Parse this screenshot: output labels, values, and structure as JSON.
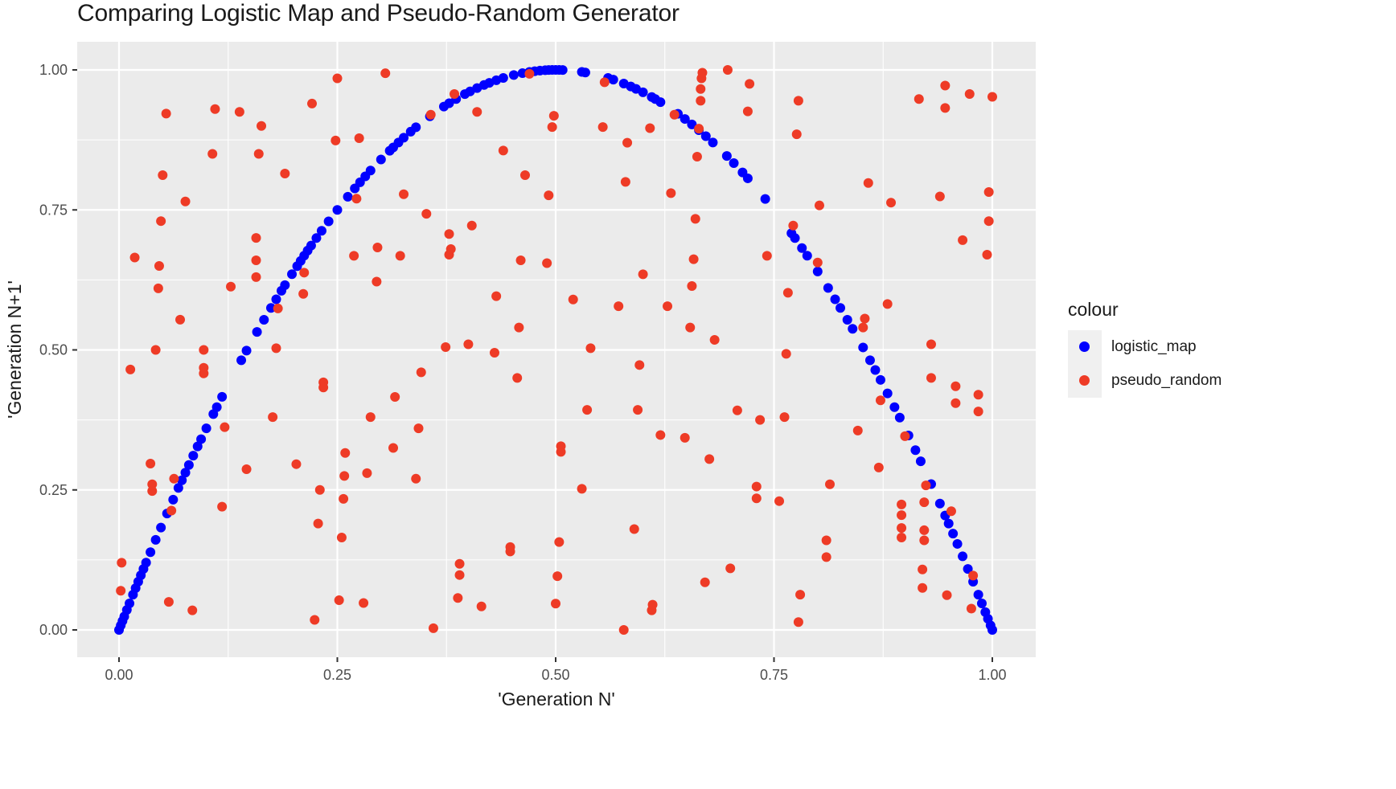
{
  "chart_data": {
    "type": "scatter",
    "title": "Comparing Logistic Map and Pseudo-Random Generator",
    "xlabel": "'Generation N'",
    "ylabel": "'Generation N+1'",
    "xlim": [
      -0.047,
      1.049
    ],
    "ylim": [
      -0.047,
      1.049
    ],
    "x_ticks": [
      0.0,
      0.25,
      0.5,
      0.75,
      1.0
    ],
    "x_tick_labels": [
      "0.00",
      "0.25",
      "0.50",
      "0.75",
      "1.00"
    ],
    "y_ticks": [
      0.0,
      0.25,
      0.5,
      0.75,
      1.0
    ],
    "y_tick_labels": [
      "0.00",
      "0.25",
      "0.50",
      "0.75",
      "1.00"
    ],
    "grid": true,
    "legend_position": "right",
    "legend_title": "colour",
    "series": [
      {
        "name": "logistic_map",
        "color": "#0000ff",
        "function": "y = 4x(1-x)",
        "x": [
          0.0,
          0.002,
          0.004,
          0.006,
          0.009,
          0.012,
          0.016,
          0.019,
          0.022,
          0.025,
          0.028,
          0.031,
          0.036,
          0.042,
          0.048,
          0.055,
          0.062,
          0.068,
          0.072,
          0.076,
          0.08,
          0.085,
          0.09,
          0.094,
          0.1,
          0.108,
          0.112,
          0.118,
          0.14,
          0.146,
          0.158,
          0.166,
          0.174,
          0.18,
          0.186,
          0.19,
          0.198,
          0.204,
          0.208,
          0.212,
          0.216,
          0.22,
          0.226,
          0.232,
          0.24,
          0.25,
          0.262,
          0.27,
          0.276,
          0.282,
          0.288,
          0.3,
          0.31,
          0.314,
          0.32,
          0.326,
          0.334,
          0.34,
          0.356,
          0.372,
          0.378,
          0.386,
          0.396,
          0.402,
          0.41,
          0.418,
          0.424,
          0.432,
          0.44,
          0.452,
          0.462,
          0.47,
          0.476,
          0.482,
          0.488,
          0.492,
          0.496,
          0.5,
          0.504,
          0.508,
          0.53,
          0.534,
          0.56,
          0.566,
          0.578,
          0.586,
          0.592,
          0.6,
          0.61,
          0.614,
          0.62,
          0.64,
          0.648,
          0.656,
          0.664,
          0.672,
          0.68,
          0.696,
          0.704,
          0.714,
          0.72,
          0.74,
          0.77,
          0.774,
          0.782,
          0.788,
          0.8,
          0.812,
          0.82,
          0.826,
          0.834,
          0.84,
          0.852,
          0.86,
          0.866,
          0.872,
          0.88,
          0.888,
          0.894,
          0.904,
          0.912,
          0.918,
          0.93,
          0.94,
          0.946,
          0.95,
          0.955,
          0.96,
          0.966,
          0.972,
          0.978,
          0.984,
          0.988,
          0.992,
          0.995,
          0.998,
          1.0
        ],
        "values": "computed as 4*x*(1-x) for each x"
      },
      {
        "name": "pseudo_random",
        "color": "#ee3b26",
        "points": [
          [
            0.003,
            0.12
          ],
          [
            0.002,
            0.07
          ],
          [
            0.013,
            0.465
          ],
          [
            0.018,
            0.665
          ],
          [
            0.036,
            0.297
          ],
          [
            0.038,
            0.26
          ],
          [
            0.038,
            0.248
          ],
          [
            0.042,
            0.5
          ],
          [
            0.045,
            0.61
          ],
          [
            0.046,
            0.65
          ],
          [
            0.048,
            0.73
          ],
          [
            0.05,
            0.812
          ],
          [
            0.054,
            0.922
          ],
          [
            0.057,
            0.05
          ],
          [
            0.06,
            0.213
          ],
          [
            0.063,
            0.27
          ],
          [
            0.07,
            0.554
          ],
          [
            0.076,
            0.765
          ],
          [
            0.084,
            0.035
          ],
          [
            0.097,
            0.5
          ],
          [
            0.097,
            0.468
          ],
          [
            0.097,
            0.458
          ],
          [
            0.107,
            0.85
          ],
          [
            0.11,
            0.93
          ],
          [
            0.118,
            0.22
          ],
          [
            0.121,
            0.362
          ],
          [
            0.128,
            0.613
          ],
          [
            0.138,
            0.925
          ],
          [
            0.146,
            0.287
          ],
          [
            0.157,
            0.7
          ],
          [
            0.157,
            0.66
          ],
          [
            0.157,
            0.63
          ],
          [
            0.16,
            0.85
          ],
          [
            0.163,
            0.9
          ],
          [
            0.176,
            0.38
          ],
          [
            0.18,
            0.503
          ],
          [
            0.182,
            0.574
          ],
          [
            0.19,
            0.815
          ],
          [
            0.203,
            0.296
          ],
          [
            0.211,
            0.6
          ],
          [
            0.212,
            0.638
          ],
          [
            0.221,
            0.94
          ],
          [
            0.224,
            0.018
          ],
          [
            0.228,
            0.19
          ],
          [
            0.23,
            0.25
          ],
          [
            0.234,
            0.442
          ],
          [
            0.234,
            0.433
          ],
          [
            0.248,
            0.874
          ],
          [
            0.25,
            0.985
          ],
          [
            0.252,
            0.053
          ],
          [
            0.255,
            0.165
          ],
          [
            0.257,
            0.234
          ],
          [
            0.258,
            0.275
          ],
          [
            0.259,
            0.316
          ],
          [
            0.269,
            0.668
          ],
          [
            0.272,
            0.77
          ],
          [
            0.275,
            0.878
          ],
          [
            0.28,
            0.048
          ],
          [
            0.284,
            0.28
          ],
          [
            0.288,
            0.38
          ],
          [
            0.295,
            0.622
          ],
          [
            0.296,
            0.683
          ],
          [
            0.305,
            0.994
          ],
          [
            0.314,
            0.325
          ],
          [
            0.316,
            0.416
          ],
          [
            0.322,
            0.668
          ],
          [
            0.326,
            0.778
          ],
          [
            0.34,
            0.27
          ],
          [
            0.343,
            0.36
          ],
          [
            0.346,
            0.46
          ],
          [
            0.352,
            0.743
          ],
          [
            0.357,
            0.92
          ],
          [
            0.36,
            0.003
          ],
          [
            0.374,
            0.505
          ],
          [
            0.378,
            0.67
          ],
          [
            0.378,
            0.707
          ],
          [
            0.38,
            0.68
          ],
          [
            0.384,
            0.957
          ],
          [
            0.388,
            0.057
          ],
          [
            0.39,
            0.098
          ],
          [
            0.39,
            0.118
          ],
          [
            0.4,
            0.51
          ],
          [
            0.404,
            0.722
          ],
          [
            0.415,
            0.042
          ],
          [
            0.41,
            0.925
          ],
          [
            0.43,
            0.495
          ],
          [
            0.432,
            0.596
          ],
          [
            0.44,
            0.856
          ],
          [
            0.448,
            0.14
          ],
          [
            0.448,
            0.148
          ],
          [
            0.456,
            0.45
          ],
          [
            0.458,
            0.54
          ],
          [
            0.46,
            0.66
          ],
          [
            0.465,
            0.812
          ],
          [
            0.47,
            0.993
          ],
          [
            0.49,
            0.655
          ],
          [
            0.492,
            0.776
          ],
          [
            0.496,
            0.898
          ],
          [
            0.498,
            0.918
          ],
          [
            0.5,
            0.047
          ],
          [
            0.502,
            0.096
          ],
          [
            0.504,
            0.157
          ],
          [
            0.506,
            0.318
          ],
          [
            0.506,
            0.328
          ],
          [
            0.52,
            0.59
          ],
          [
            0.53,
            0.252
          ],
          [
            0.536,
            0.393
          ],
          [
            0.54,
            0.503
          ],
          [
            0.554,
            0.898
          ],
          [
            0.556,
            0.978
          ],
          [
            0.572,
            0.578
          ],
          [
            0.578,
            0.0
          ],
          [
            0.58,
            0.8
          ],
          [
            0.582,
            0.87
          ],
          [
            0.59,
            0.18
          ],
          [
            0.594,
            0.393
          ],
          [
            0.596,
            0.473
          ],
          [
            0.6,
            0.635
          ],
          [
            0.608,
            0.896
          ],
          [
            0.61,
            0.035
          ],
          [
            0.611,
            0.045
          ],
          [
            0.62,
            0.348
          ],
          [
            0.628,
            0.578
          ],
          [
            0.632,
            0.78
          ],
          [
            0.636,
            0.92
          ],
          [
            0.648,
            0.343
          ],
          [
            0.654,
            0.54
          ],
          [
            0.656,
            0.614
          ],
          [
            0.658,
            0.662
          ],
          [
            0.66,
            0.734
          ],
          [
            0.662,
            0.845
          ],
          [
            0.664,
            0.895
          ],
          [
            0.666,
            0.945
          ],
          [
            0.666,
            0.966
          ],
          [
            0.667,
            0.985
          ],
          [
            0.668,
            0.995
          ],
          [
            0.671,
            0.085
          ],
          [
            0.676,
            0.305
          ],
          [
            0.682,
            0.518
          ],
          [
            0.697,
            1.0
          ],
          [
            0.7,
            0.11
          ],
          [
            0.708,
            0.392
          ],
          [
            0.72,
            0.926
          ],
          [
            0.722,
            0.975
          ],
          [
            0.73,
            0.235
          ],
          [
            0.73,
            0.256
          ],
          [
            0.734,
            0.375
          ],
          [
            0.742,
            0.668
          ],
          [
            0.756,
            0.23
          ],
          [
            0.762,
            0.38
          ],
          [
            0.764,
            0.493
          ],
          [
            0.766,
            0.602
          ],
          [
            0.772,
            0.722
          ],
          [
            0.776,
            0.885
          ],
          [
            0.778,
            0.945
          ],
          [
            0.778,
            0.014
          ],
          [
            0.78,
            0.063
          ],
          [
            0.8,
            0.656
          ],
          [
            0.802,
            0.758
          ],
          [
            0.81,
            0.13
          ],
          [
            0.81,
            0.16
          ],
          [
            0.814,
            0.26
          ],
          [
            0.846,
            0.356
          ],
          [
            0.852,
            0.54
          ],
          [
            0.854,
            0.556
          ],
          [
            0.858,
            0.798
          ],
          [
            0.87,
            0.29
          ],
          [
            0.872,
            0.41
          ],
          [
            0.88,
            0.582
          ],
          [
            0.884,
            0.763
          ],
          [
            0.896,
            0.224
          ],
          [
            0.896,
            0.205
          ],
          [
            0.896,
            0.182
          ],
          [
            0.896,
            0.165
          ],
          [
            0.9,
            0.346
          ],
          [
            0.916,
            0.948
          ],
          [
            0.92,
            0.075
          ],
          [
            0.92,
            0.108
          ],
          [
            0.922,
            0.16
          ],
          [
            0.922,
            0.178
          ],
          [
            0.922,
            0.228
          ],
          [
            0.924,
            0.258
          ],
          [
            0.93,
            0.45
          ],
          [
            0.93,
            0.51
          ],
          [
            0.94,
            0.774
          ],
          [
            0.946,
            0.932
          ],
          [
            0.946,
            0.972
          ],
          [
            0.948,
            0.062
          ],
          [
            0.953,
            0.212
          ],
          [
            0.958,
            0.405
          ],
          [
            0.958,
            0.435
          ],
          [
            0.966,
            0.696
          ],
          [
            0.974,
            0.957
          ],
          [
            0.976,
            0.038
          ],
          [
            0.978,
            0.097
          ],
          [
            0.984,
            0.39
          ],
          [
            0.984,
            0.42
          ],
          [
            0.994,
            0.67
          ],
          [
            0.996,
            0.73
          ],
          [
            0.996,
            0.782
          ],
          [
            1.0,
            0.952
          ]
        ]
      }
    ]
  },
  "legend": {
    "title": "colour",
    "items": [
      {
        "label": "logistic_map",
        "color": "#0000ff"
      },
      {
        "label": "pseudo_random",
        "color": "#ee3b26"
      }
    ]
  },
  "axes": {
    "x_title": "'Generation N'",
    "y_title": "'Generation N+1'"
  },
  "colors": {
    "panel_bg": "#ebebeb",
    "grid_major": "#ffffff",
    "logistic": "#0000ff",
    "pseudo": "#ee3b26"
  }
}
